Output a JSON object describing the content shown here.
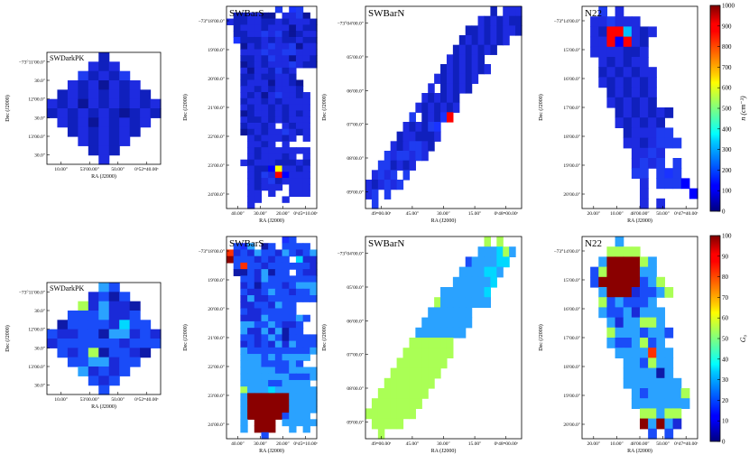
{
  "figure": {
    "rows": [
      {
        "quantity": "n",
        "colorbar_label": "n (cm⁻³)",
        "colorbar_ticks": [
          "0",
          "100",
          "200",
          "300",
          "400",
          "500",
          "600",
          "700",
          "800",
          "900",
          "1000"
        ],
        "vmax": 1000
      },
      {
        "quantity": "G0",
        "colorbar_label": "G₀",
        "colorbar_ticks": [
          "0",
          "10",
          "20",
          "30",
          "40",
          "50",
          "60",
          "70",
          "80",
          "90",
          "100"
        ],
        "vmax": 100
      }
    ],
    "panels": [
      {
        "title": "SWDarkPK",
        "ylabel": "Dec (J2000)",
        "xlabel": "RA (J2000)",
        "yticks": [
          "−73°11′00.0″",
          "30.0″",
          "12′00.0″",
          "30.0″",
          "13′00.0″",
          "30.0″"
        ],
        "xticks": [
          "10.00″",
          "53′00.00″",
          "50.00″",
          "0ʰ52ᵐ40.00ˢ"
        ]
      },
      {
        "title": "SWBarS",
        "ylabel": "Dec (J2000)",
        "xlabel": "RA (J2000)",
        "yticks": [
          "−73°18′00.0″",
          "19′00.0″",
          "20′00.0″",
          "21′00.0″",
          "22′00.0″",
          "23′00.0″",
          "24′00.0″"
        ],
        "xticks": [
          "40.00″",
          "30.00″",
          "20.00″",
          "0ʰ45ᵐ10.00ˢ"
        ]
      },
      {
        "title": "SWBarN",
        "ylabel": "Dec (J2000)",
        "xlabel": "RA (J2000)",
        "yticks": [
          "−73°04′00.0″",
          "05′00.0″",
          "06′00.0″",
          "07′00.0″",
          "08′00.0″",
          "09′00.0″"
        ],
        "xticks": [
          "49ᵐ00.00ˢ",
          "45.00″",
          "30.00″",
          "15.00″",
          "0ʰ48ᵐ00.00ˢ"
        ]
      },
      {
        "title": "N22",
        "ylabel": "Dec (J2000)",
        "xlabel": "RA (J2000)",
        "yticks": [
          "−73°14′00.0″",
          "15′00.0″",
          "16′00.0″",
          "17′00.0″",
          "18′00.0″",
          "19′00.0″",
          "20′00.0″"
        ],
        "xticks": [
          "20.00″",
          "10.00″",
          "48′00.00″",
          "50.00″",
          "0ʰ47ᵐ40.00ˢ"
        ]
      }
    ]
  },
  "chart_data": [
    {
      "type": "heatmap",
      "row": 1,
      "title": "SWDarkPK",
      "quantity": "n (cm⁻³)",
      "xlabel": "RA (J2000)",
      "ylabel": "Dec (J2000)",
      "vlim": [
        0,
        1000
      ],
      "cells": [
        ".....7.....",
        "....676....",
        "...57675...",
        "..6768676..",
        ".767676767.",
        "67686767676",
        "76767678767",
        ".676867676.",
        "..7676767..",
        "...67676...",
        "....767....",
        ".....6....."
      ]
    },
    {
      "type": "heatmap",
      "row": 2,
      "title": "SWDarkPK",
      "quantity": "G₀",
      "xlabel": "RA (J2000)",
      "ylabel": "Dec (J2000)",
      "vlim": [
        0,
        100
      ],
      "cells": [
        ".....56....",
        "....7686...",
        "...475778..",
        "..6665776..",
        ".866667366.",
        "67766855767",
        "76666667666",
        ".676486678.",
        "..6655766..",
        "...57676...",
        "....676....",
        ".....6....."
      ]
    },
    {
      "type": "heatmap",
      "row": 1,
      "title": "SWBarS",
      "quantity": "n (cm⁻³)",
      "xlabel": "RA (J2000)",
      "ylabel": "Dec (J2000)",
      "vlim": [
        0,
        1000
      ],
      "cells": [
        ".......5.45..",
        ".776688.6658.",
        "6776677676667",
        ".766676668677",
        ".776656578766",
        ".477767677677",
        "..86765665866",
        "..96656655666",
        "..77675668667",
        "..87676665677",
        "..68667576...",
        "..77677667...",
        "..766686678..",
        "..667676667..",
        "..6768656676.",
        "..7667676666.",
        "..6766767666.",
        "..8766767676.",
        "..6776767666.",
        "..76676.6766.",
        "..8767665676.",
        "...6766676.6.",
        "...6676.6....",
        "...676666666.",
        "...6766676.6.",
        "..6766677767.",
        "...6773L6676.",
        "...6759H3666.",
        "...676576666.",
        "...67666.666.",
        "...66.6..666.",
        "...66...6....",
        "...6........."
      ]
    },
    {
      "type": "heatmap",
      "row": 2,
      "title": "SWBarS",
      "quantity": "G₀",
      "xlabel": "RA (J2000)",
      "ylabel": "Dec (J2000)",
      "vlim": [
        0,
        100
      ],
      "cells": [
        "........R6...",
        ".6R5.86.6666.",
        "L767566756765",
        "M66676766.377",
        ".6L6676666667",
        ".88675866.677",
        "..66756666666",
        "..76866676555",
        "..67765667665",
        "..75776666666",
        "..77667566...",
        "..67766666...",
        "..7775666656.",
        "..556656776..",
        "..577575866..",
        "..66765686666",
        "..76767575666",
        "..56666666665",
        "..5556565555.",
        "..555666656..",
        "..55555665555",
        "..55555556665",
        "..5555665555.",
        "..45553555555",
        "..5HHHHHH5555",
        "..5HHHHHH5555",
        "..5HHHHHH5555",
        "..5HHHHH6555.",
        "..5.HHH.55555",
        "..5.HHH..5.5.",
        ".....6......."
      ]
    },
    {
      "type": "heatmap",
      "row": 1,
      "title": "SWBarN",
      "quantity": "n (cm⁻³)",
      "xlabel": "RA (J2000)",
      "ylabel": "Dec (J2000)",
      "vlim": [
        0,
        1000
      ],
      "cells": [
        "....................7.666",
        "..................6767677",
        "................776767667",
        "...............76767676..",
        "..............7676767....",
        ".............676767......",
        "............76767676.....",
        "...........6767676.......",
        "..........6.76767........",
        ".........676767..........",
        "........6767676..........",
        ".......5.7674X...........",
        "......676754.............",
        ".....7667776.............",
        "....6765567..............",
        "...5655656...............",
        "..557676.................",
        ".6565.5..................",
        "676565...................",
        "65.5.....................",
        ".5......................."
      ]
    },
    {
      "type": "heatmap",
      "row": 2,
      "title": "SWBarN",
      "quantity": "G₀",
      "xlabel": "RA (J2000)",
      "ylabel": "Dec (J2000)",
      "vlim": [
        0,
        100
      ],
      "cells": [
        "...................4.4...",
        "..................555345.",
        "................6555533..",
        "...............5555335...",
        "..............5555553....",
        "............55555553.....",
        "...........455555555.....",
        "..........5555555........",
        ".........55555555........",
        "........55555555.........",
        ".......4444444...........",
        "......44444444...........",
        ".....44444444............",
        "....44444444.............",
        "...44444444..............",
        "..44444444...............",
        ".44444444................",
        "44444444.................",
        ".44444...................",
        "..4......................"
      ]
    },
    {
      "type": "heatmap",
      "row": 1,
      "title": "N22",
      "quantity": "n (cm⁻³)",
      "xlabel": "RA (J2000)",
      "ylabel": "Dec (J2000)",
      "vlim": [
        0,
        1000
      ],
      "cells": [
        "..5.6.........",
        ".665666.......",
        ".67HHA676.....",
        ".66H3H67......",
        ".6666776......",
        "..676766......",
        "..7676766.....",
        "..6767676.....",
        "...767676.....",
        "...676767.....",
        "....7676767...",
        "....676767....",
        ".....766655...",
        ".....6676555..",
        "......6656....",
        "......6565.5..",
        "......55.545..",
        ".......6.5553.",
        ".......6.....3",
        ".......6.6...."
      ]
    },
    {
      "type": "heatmap",
      "row": 2,
      "title": "N22",
      "quantity": "G₀",
      "xlabel": "RA (J2000)",
      "ylabel": "Dec (J2000)",
      "vlim": [
        0,
        100
      ],
      "cells": [
        "....5.........",
        "...4444.......",
        "..5HHHH45.....",
        ".64HHHH55.....",
        ".6HHHHH654....",
        "..5HHH76654...",
        "..4656665.....",
        "..56657555....",
        "...5755445....",
        "...45556556...",
        "...5665465....",
        "....5555L55...",
        ".....556455...",
        ".....555585...",
        ".....5555555..",
        "......5655554.",
        "......5555555.",
        ".......44544..",
        ".......M5M57..",
        "........6.6..."
      ]
    }
  ]
}
